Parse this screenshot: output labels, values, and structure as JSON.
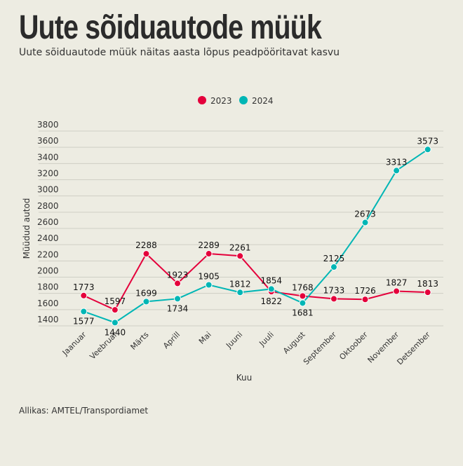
{
  "header": {
    "title": "Uute sõiduautode müük",
    "subtitle": "Uute sõiduautode müük näitas aasta lõpus peadpööritavat kasvu"
  },
  "source": "Allikas: AMTEL/Transpordiamet",
  "chart_data": {
    "type": "line",
    "title": "Uute sõiduautode müük",
    "xlabel": "Kuu",
    "ylabel": "Müüdud autod",
    "categories": [
      "Jaanuar",
      "Veebruar",
      "Märts",
      "Aprill",
      "Mai",
      "Juuni",
      "Juuli",
      "August",
      "September",
      "Oktoober",
      "November",
      "Detsember"
    ],
    "ylim": [
      1400,
      3800
    ],
    "yticks": [
      1400,
      1600,
      1800,
      2000,
      2200,
      2400,
      2600,
      2800,
      3000,
      3200,
      3400,
      3600,
      3800
    ],
    "grid": true,
    "legend": "top-center",
    "series": [
      {
        "name": "2023",
        "color": "#e4003b",
        "values": [
          1773,
          1597,
          2288,
          1923,
          2289,
          2261,
          1822,
          1768,
          1733,
          1726,
          1827,
          1813
        ]
      },
      {
        "name": "2024",
        "color": "#00b6b5",
        "values": [
          1577,
          1440,
          1699,
          1734,
          1905,
          1812,
          1854,
          1681,
          2125,
          2673,
          3313,
          3573
        ]
      }
    ]
  }
}
